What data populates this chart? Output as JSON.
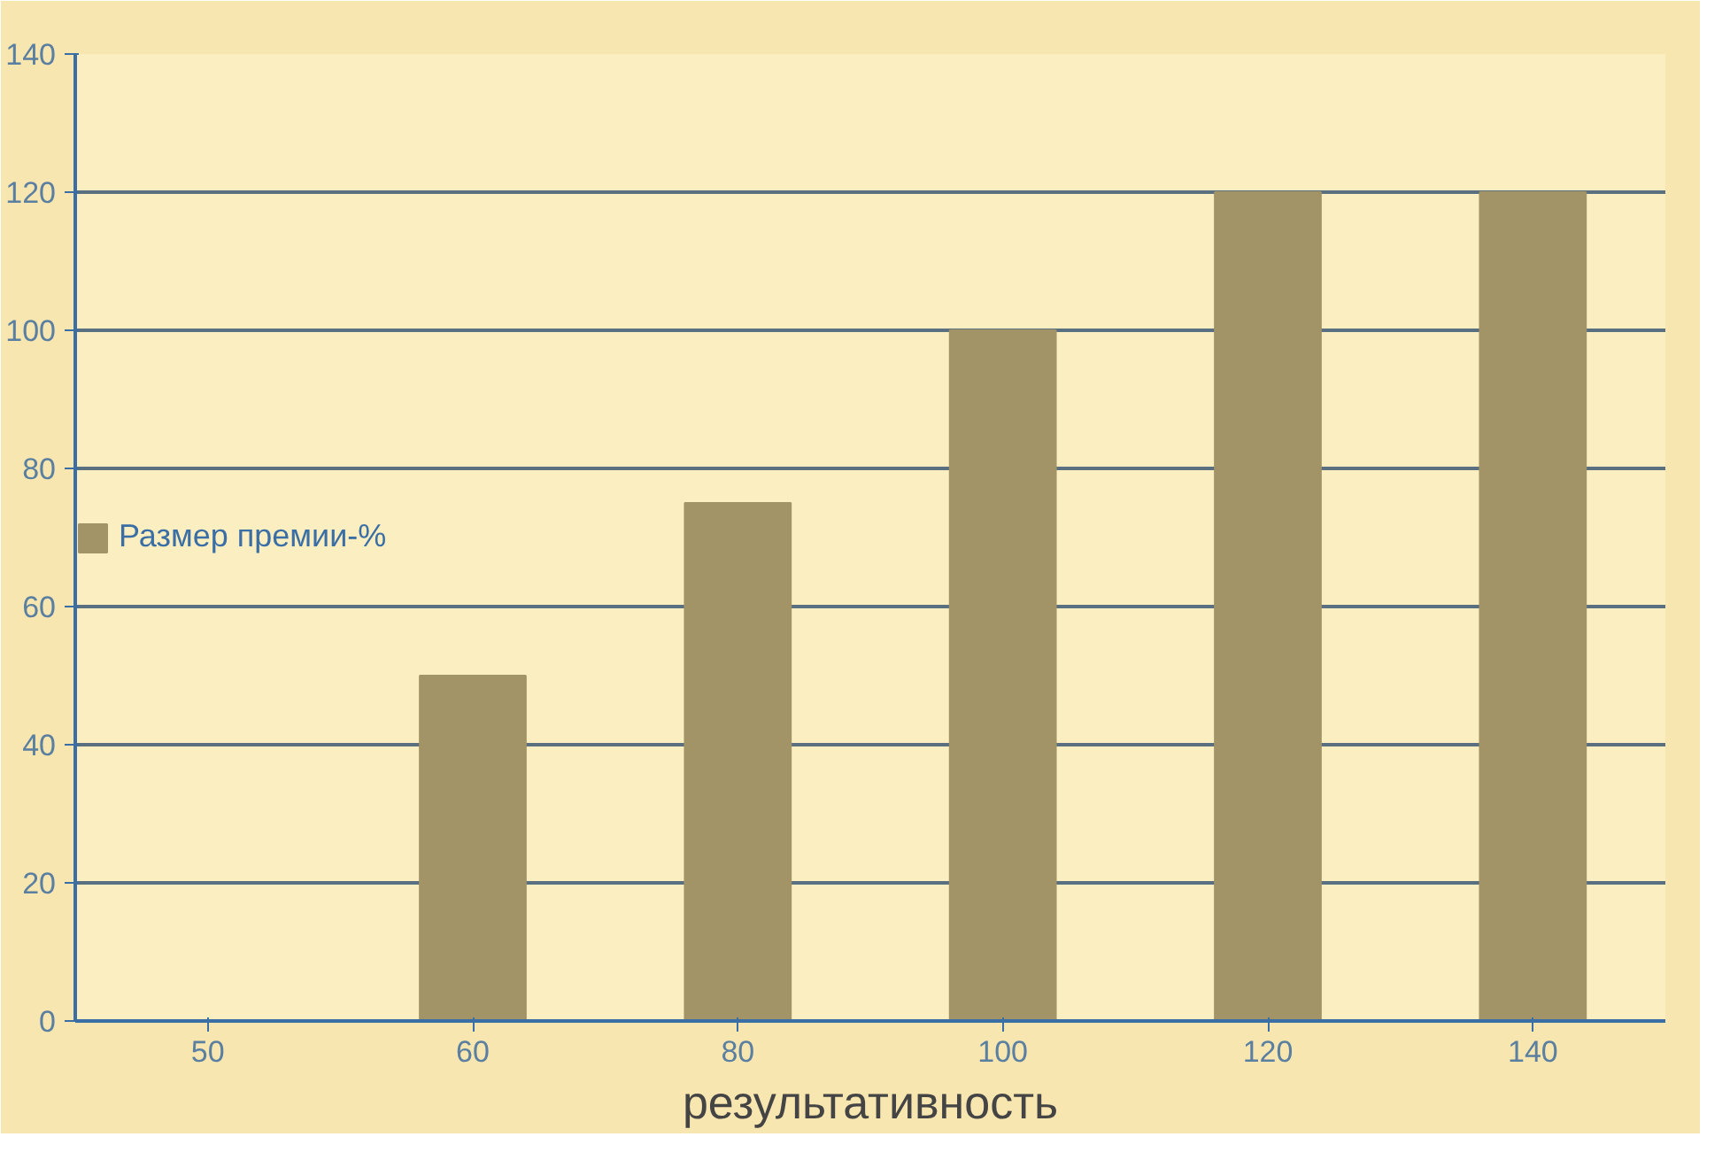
{
  "chart_data": {
    "type": "bar",
    "categories": [
      "50",
      "60",
      "80",
      "100",
      "120",
      "140"
    ],
    "series": [
      {
        "name": "Размер премии-%",
        "color": "#a39467",
        "values": [
          0,
          50,
          75,
          100,
          120,
          120
        ]
      }
    ],
    "xlabel": "результативность",
    "ylim": [
      0,
      140
    ],
    "yticks": [
      0,
      20,
      40,
      60,
      80,
      100,
      120,
      140
    ],
    "grid": "y",
    "legend": "left"
  }
}
